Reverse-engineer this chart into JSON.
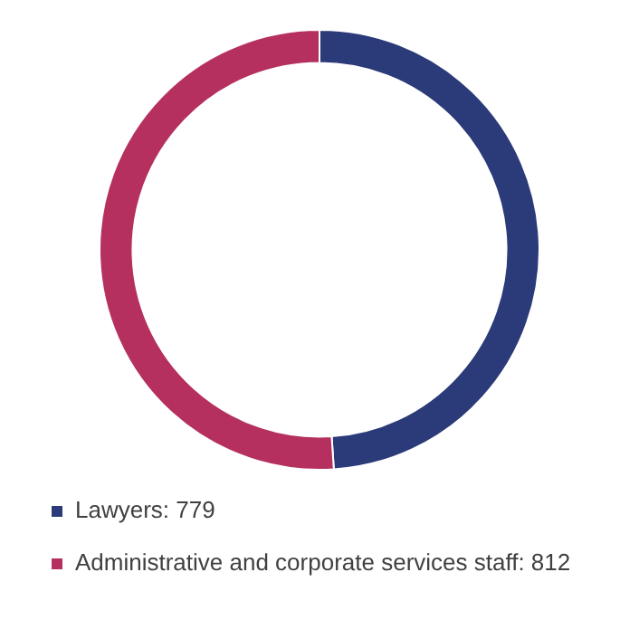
{
  "chart_data": {
    "type": "donut",
    "categories": [
      "Lawyers: 779",
      "Administrative and corporate services staff: 812"
    ],
    "values": [
      779,
      812
    ],
    "colors": [
      "#2b3a78",
      "#b5305f"
    ],
    "legend": "bottom"
  }
}
